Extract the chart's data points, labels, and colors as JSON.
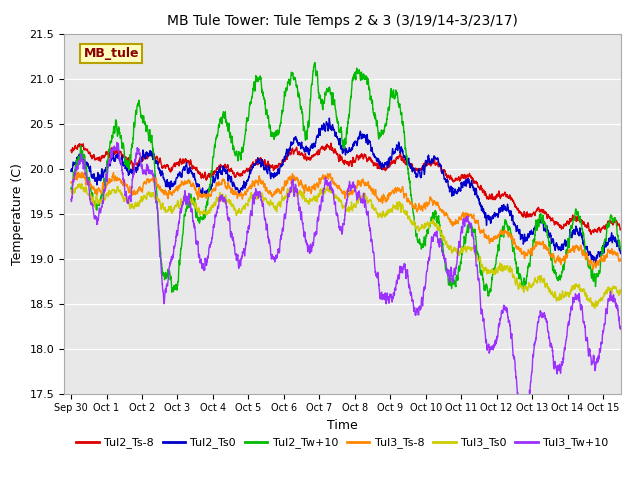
{
  "title": "MB Tule Tower: Tule Temps 2 & 3 (3/19/14-3/23/17)",
  "xlabel": "Time",
  "ylabel": "Temperature (C)",
  "ylim": [
    17.5,
    21.5
  ],
  "xlim": [
    -0.2,
    15.5
  ],
  "xtick_labels": [
    "Sep 30",
    "Oct 1",
    "Oct 2",
    "Oct 3",
    "Oct 4",
    "Oct 5",
    "Oct 6",
    "Oct 7",
    "Oct 8",
    "Oct 9",
    "Oct 10",
    "Oct 11",
    "Oct 12",
    "Oct 13",
    "Oct 14",
    "Oct 15"
  ],
  "xtick_positions": [
    0,
    1,
    2,
    3,
    4,
    5,
    6,
    7,
    8,
    9,
    10,
    11,
    12,
    13,
    14,
    15
  ],
  "ytick_positions": [
    17.5,
    18.0,
    18.5,
    19.0,
    19.5,
    20.0,
    20.5,
    21.0,
    21.5
  ],
  "annotation_text": "MB_tule",
  "annotation_color": "#8B0000",
  "annotation_bg": "#FFFFC0",
  "annotation_border": "#B8A000",
  "background_color": "#E8E8E8",
  "lines": [
    {
      "label": "Tul2_Ts-8",
      "color": "#DD0000",
      "lw": 1.0
    },
    {
      "label": "Tul2_Ts0",
      "color": "#0000CC",
      "lw": 1.0
    },
    {
      "label": "Tul2_Tw+10",
      "color": "#00BB00",
      "lw": 1.0
    },
    {
      "label": "Tul3_Ts-8",
      "color": "#FF8800",
      "lw": 1.0
    },
    {
      "label": "Tul3_Ts0",
      "color": "#CCCC00",
      "lw": 1.0
    },
    {
      "label": "Tul3_Tw+10",
      "color": "#9B30FF",
      "lw": 1.0
    }
  ]
}
